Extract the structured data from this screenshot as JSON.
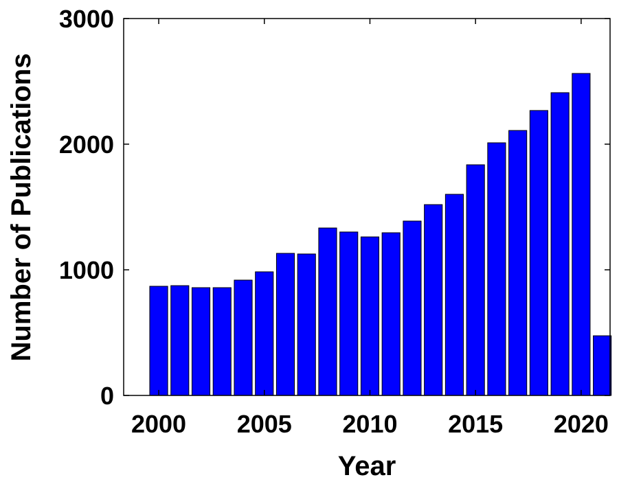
{
  "chart_data": {
    "type": "bar",
    "title": "",
    "xlabel": "Year",
    "ylabel": "Number of Publications",
    "categories": [
      2000,
      2001,
      2002,
      2003,
      2004,
      2005,
      2006,
      2007,
      2008,
      2009,
      2010,
      2011,
      2012,
      2013,
      2014,
      2015,
      2016,
      2017,
      2018,
      2019,
      2020,
      2021
    ],
    "values": [
      869,
      874,
      858,
      858,
      918,
      984,
      1131,
      1126,
      1333,
      1301,
      1262,
      1295,
      1388,
      1519,
      1601,
      1836,
      2011,
      2109,
      2268,
      2410,
      2563,
      475
    ],
    "xlim": [
      1998.34,
      2021.37
    ],
    "ylim": [
      0,
      3000
    ],
    "xticks": [
      "2000",
      "2005",
      "2010",
      "2015",
      "2020"
    ],
    "yticks": [
      "0",
      "1000",
      "2000",
      "3000"
    ],
    "grid": false,
    "bar_color": "#0000ff"
  }
}
